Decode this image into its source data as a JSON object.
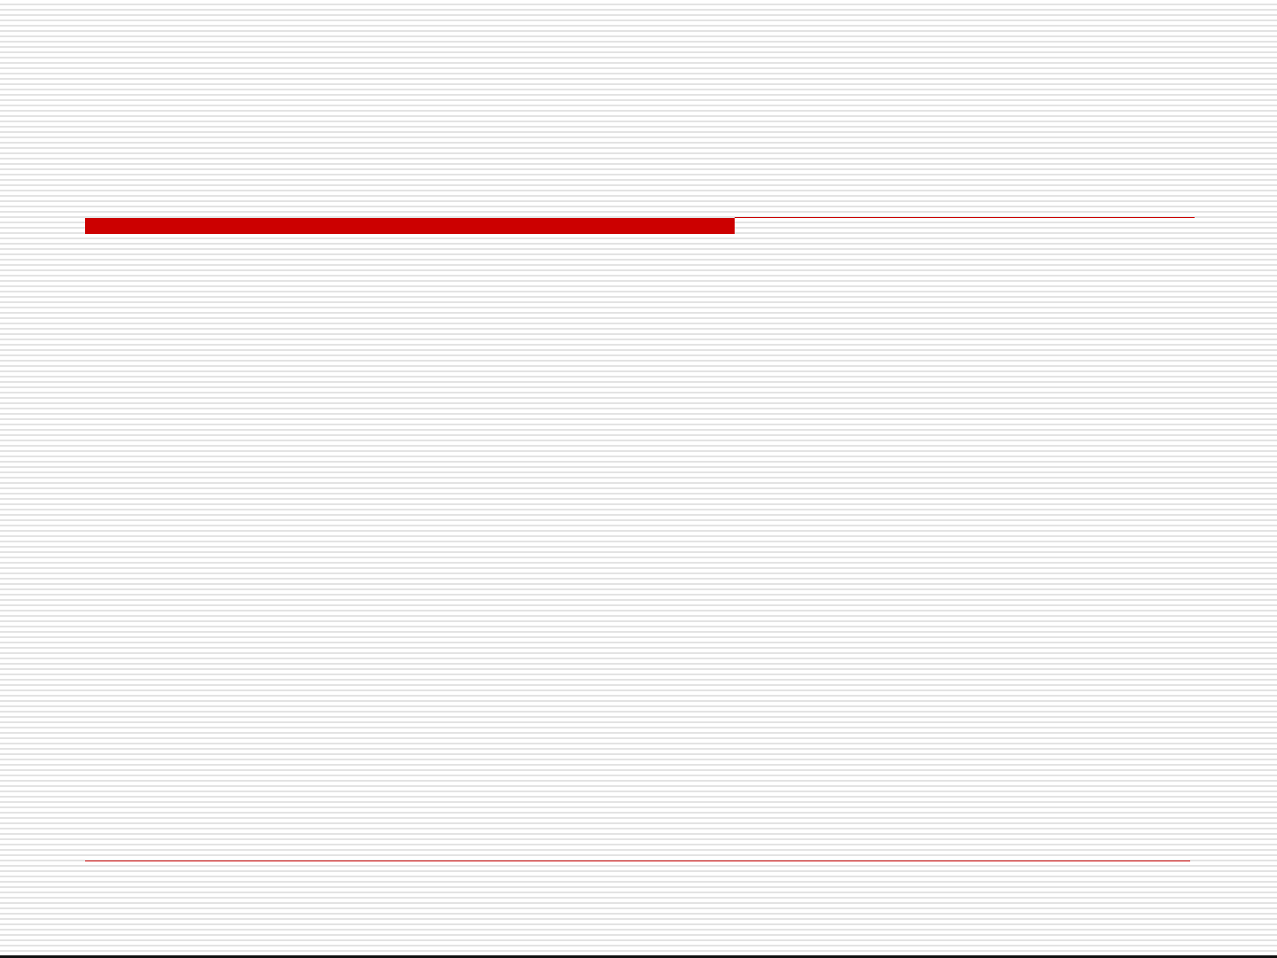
{
  "slide": {
    "accent_color": "#cc0000",
    "stripe_color": "#e3e3e3",
    "background_color": "#ffffff",
    "edge_color": "#111111"
  }
}
